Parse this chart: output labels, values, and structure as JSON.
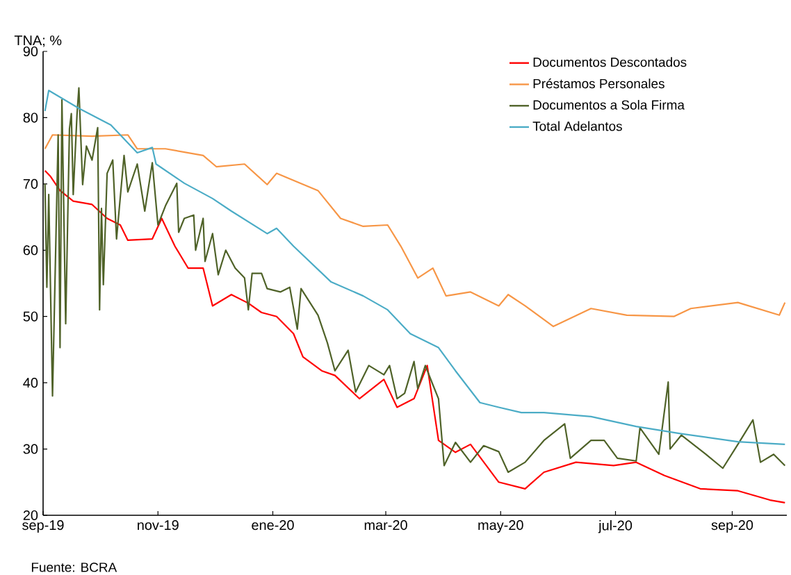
{
  "chart_data": {
    "type": "line",
    "ylabel": "TNA; %",
    "annotations": [
      "Fuente: BCRA"
    ],
    "xlim": [
      "2019-09-01",
      "2020-09-30"
    ],
    "ylim": [
      20,
      90
    ],
    "xticks": [
      {
        "value": "2019-09-01",
        "label": "sep-19"
      },
      {
        "value": "2019-11-01",
        "label": "nov-19"
      },
      {
        "value": "2020-01-01",
        "label": "ene-20"
      },
      {
        "value": "2020-03-01",
        "label": "mar-20"
      },
      {
        "value": "2020-05-01",
        "label": "may-20"
      },
      {
        "value": "2020-07-01",
        "label": "jul-20"
      },
      {
        "value": "2020-09-01",
        "label": "sep-20"
      }
    ],
    "yticks": [
      20,
      30,
      40,
      50,
      60,
      70,
      80,
      90
    ],
    "grid": false,
    "legend": "top right",
    "marker": "none",
    "line_style": "solid",
    "series": [
      {
        "name": "Documentos Descontados",
        "color": "#ff0000",
        "x": [
          "2019-09-02",
          "2019-09-05",
          "2019-09-10",
          "2019-09-17",
          "2019-09-27",
          "2019-10-05",
          "2019-10-12",
          "2019-10-16",
          "2019-10-29",
          "2019-11-03",
          "2019-11-10",
          "2019-11-17",
          "2019-11-25",
          "2019-11-30",
          "2019-12-10",
          "2019-12-19",
          "2019-12-26",
          "2020-01-03",
          "2020-01-12",
          "2020-01-17",
          "2020-01-27",
          "2020-02-03",
          "2020-02-16",
          "2020-02-29",
          "2020-03-07",
          "2020-03-16",
          "2020-03-23",
          "2020-03-29",
          "2020-04-07",
          "2020-04-15",
          "2020-04-30",
          "2020-05-14",
          "2020-05-24",
          "2020-06-10",
          "2020-06-30",
          "2020-07-12",
          "2020-07-27",
          "2020-08-15",
          "2020-09-04",
          "2020-09-21",
          "2020-09-29"
        ],
        "values": [
          72,
          71.1,
          69,
          67.4,
          66.9,
          64.8,
          63.8,
          61.5,
          61.7,
          64.8,
          60.6,
          57.3,
          57.3,
          51.6,
          53.3,
          52,
          50.6,
          50,
          47.4,
          43.9,
          41.8,
          41.1,
          37.6,
          40.5,
          36.3,
          37.6,
          42.6,
          31.3,
          29.5,
          30.7,
          25,
          24,
          26.5,
          28,
          27.5,
          28,
          26,
          24,
          23.7,
          22.3,
          21.9
        ]
      },
      {
        "name": "Préstamos Personales",
        "color": "#f79646",
        "x": [
          "2019-09-02",
          "2019-09-06",
          "2019-09-27",
          "2019-10-16",
          "2019-10-21",
          "2019-11-05",
          "2019-11-25",
          "2019-12-02",
          "2019-12-17",
          "2019-12-29",
          "2020-01-03",
          "2020-01-25",
          "2020-02-06",
          "2020-02-18",
          "2020-03-02",
          "2020-03-09",
          "2020-03-18",
          "2020-03-26",
          "2020-04-02",
          "2020-04-15",
          "2020-04-30",
          "2020-05-05",
          "2020-05-14",
          "2020-05-29",
          "2020-06-18",
          "2020-07-07",
          "2020-08-01",
          "2020-08-10",
          "2020-09-04",
          "2020-09-26",
          "2020-09-29"
        ],
        "values": [
          75.3,
          77.4,
          77.2,
          77.4,
          75.3,
          75.3,
          74.3,
          72.6,
          73,
          69.9,
          71.6,
          69,
          64.8,
          63.6,
          63.8,
          60.6,
          55.8,
          57.3,
          53.1,
          53.7,
          51.6,
          53.3,
          51.6,
          48.5,
          51.2,
          50.2,
          50,
          51.2,
          52.1,
          50.2,
          52.1
        ]
      },
      {
        "name": "Documentos a Sola Firma",
        "color": "#4f6228",
        "x": [
          "2019-09-02",
          "2019-09-03",
          "2019-09-04",
          "2019-09-06",
          "2019-09-09",
          "2019-09-10",
          "2019-09-11",
          "2019-09-13",
          "2019-09-15",
          "2019-09-16",
          "2019-09-17",
          "2019-09-19",
          "2019-09-20",
          "2019-09-22",
          "2019-09-24",
          "2019-09-27",
          "2019-09-30",
          "2019-10-01",
          "2019-10-02",
          "2019-10-03",
          "2019-10-05",
          "2019-10-08",
          "2019-10-10",
          "2019-10-14",
          "2019-10-16",
          "2019-10-21",
          "2019-10-25",
          "2019-10-29",
          "2019-11-01",
          "2019-11-05",
          "2019-11-11",
          "2019-11-12",
          "2019-11-15",
          "2019-11-20",
          "2019-11-21",
          "2019-11-25",
          "2019-11-26",
          "2019-11-30",
          "2019-12-03",
          "2019-12-07",
          "2019-12-12",
          "2019-12-17",
          "2019-12-19",
          "2019-12-21",
          "2019-12-26",
          "2019-12-29",
          "2020-01-05",
          "2020-01-10",
          "2020-01-14",
          "2020-01-16",
          "2020-01-25",
          "2020-01-30",
          "2020-02-03",
          "2020-02-10",
          "2020-02-14",
          "2020-02-21",
          "2020-02-29",
          "2020-03-03",
          "2020-03-07",
          "2020-03-11",
          "2020-03-16",
          "2020-03-18",
          "2020-03-22",
          "2020-03-26",
          "2020-03-29",
          "2020-04-01",
          "2020-04-07",
          "2020-04-15",
          "2020-04-22",
          "2020-04-30",
          "2020-05-05",
          "2020-05-14",
          "2020-05-24",
          "2020-06-04",
          "2020-06-07",
          "2020-06-18",
          "2020-06-25",
          "2020-07-02",
          "2020-07-12",
          "2020-07-14",
          "2020-07-24",
          "2020-07-29",
          "2020-07-30",
          "2020-08-05",
          "2020-08-18",
          "2020-08-27",
          "2020-09-04",
          "2020-09-12",
          "2020-09-16",
          "2020-09-23",
          "2020-09-29"
        ],
        "values": [
          70,
          54.4,
          68.4,
          38,
          77.4,
          45.3,
          82.7,
          48.9,
          78.3,
          80.6,
          68.4,
          80.4,
          84.5,
          69.9,
          75.7,
          73.6,
          78.5,
          51,
          66.3,
          54.8,
          71.6,
          73.6,
          61.7,
          74.3,
          68.8,
          73,
          65.9,
          73.2,
          63.8,
          66.7,
          70.1,
          62.7,
          64.8,
          65.3,
          60,
          64.8,
          58.3,
          62.5,
          56.3,
          60,
          57.3,
          55.8,
          51,
          56.5,
          56.5,
          54.2,
          53.7,
          54.4,
          48.1,
          54.2,
          50.2,
          46,
          41.8,
          44.9,
          38.6,
          42.6,
          41.2,
          42.6,
          37.6,
          38.4,
          43.2,
          39.1,
          42.6,
          39.7,
          37.6,
          27.5,
          31,
          28,
          30.5,
          29.6,
          26.5,
          28,
          31.3,
          33.8,
          28.6,
          31.3,
          31.3,
          28.6,
          28.2,
          33.2,
          29.2,
          40.1,
          30,
          32.1,
          29.2,
          27.1,
          30.7,
          34.4,
          28,
          29.2,
          27.5
        ]
      },
      {
        "name": "Total Adelantos",
        "color": "#4bacc6",
        "x": [
          "2019-09-02",
          "2019-09-04",
          "2019-09-20",
          "2019-10-07",
          "2019-10-21",
          "2019-10-29",
          "2019-10-31",
          "2019-11-15",
          "2019-11-30",
          "2019-12-10",
          "2019-12-29",
          "2020-01-03",
          "2020-01-12",
          "2020-02-01",
          "2020-02-18",
          "2020-03-02",
          "2020-03-14",
          "2020-03-29",
          "2020-04-07",
          "2020-04-20",
          "2020-04-30",
          "2020-05-12",
          "2020-05-24",
          "2020-06-18",
          "2020-07-12",
          "2020-08-05",
          "2020-09-04",
          "2020-09-29"
        ],
        "values": [
          81,
          84.1,
          81.4,
          78.9,
          74.7,
          75.5,
          73,
          70.1,
          67.8,
          65.9,
          62.5,
          63.3,
          60.6,
          55.2,
          53.1,
          51,
          47.4,
          45.3,
          41.8,
          37,
          36.3,
          35.5,
          35.5,
          34.9,
          33.4,
          32.3,
          31.1,
          30.7
        ]
      }
    ]
  }
}
